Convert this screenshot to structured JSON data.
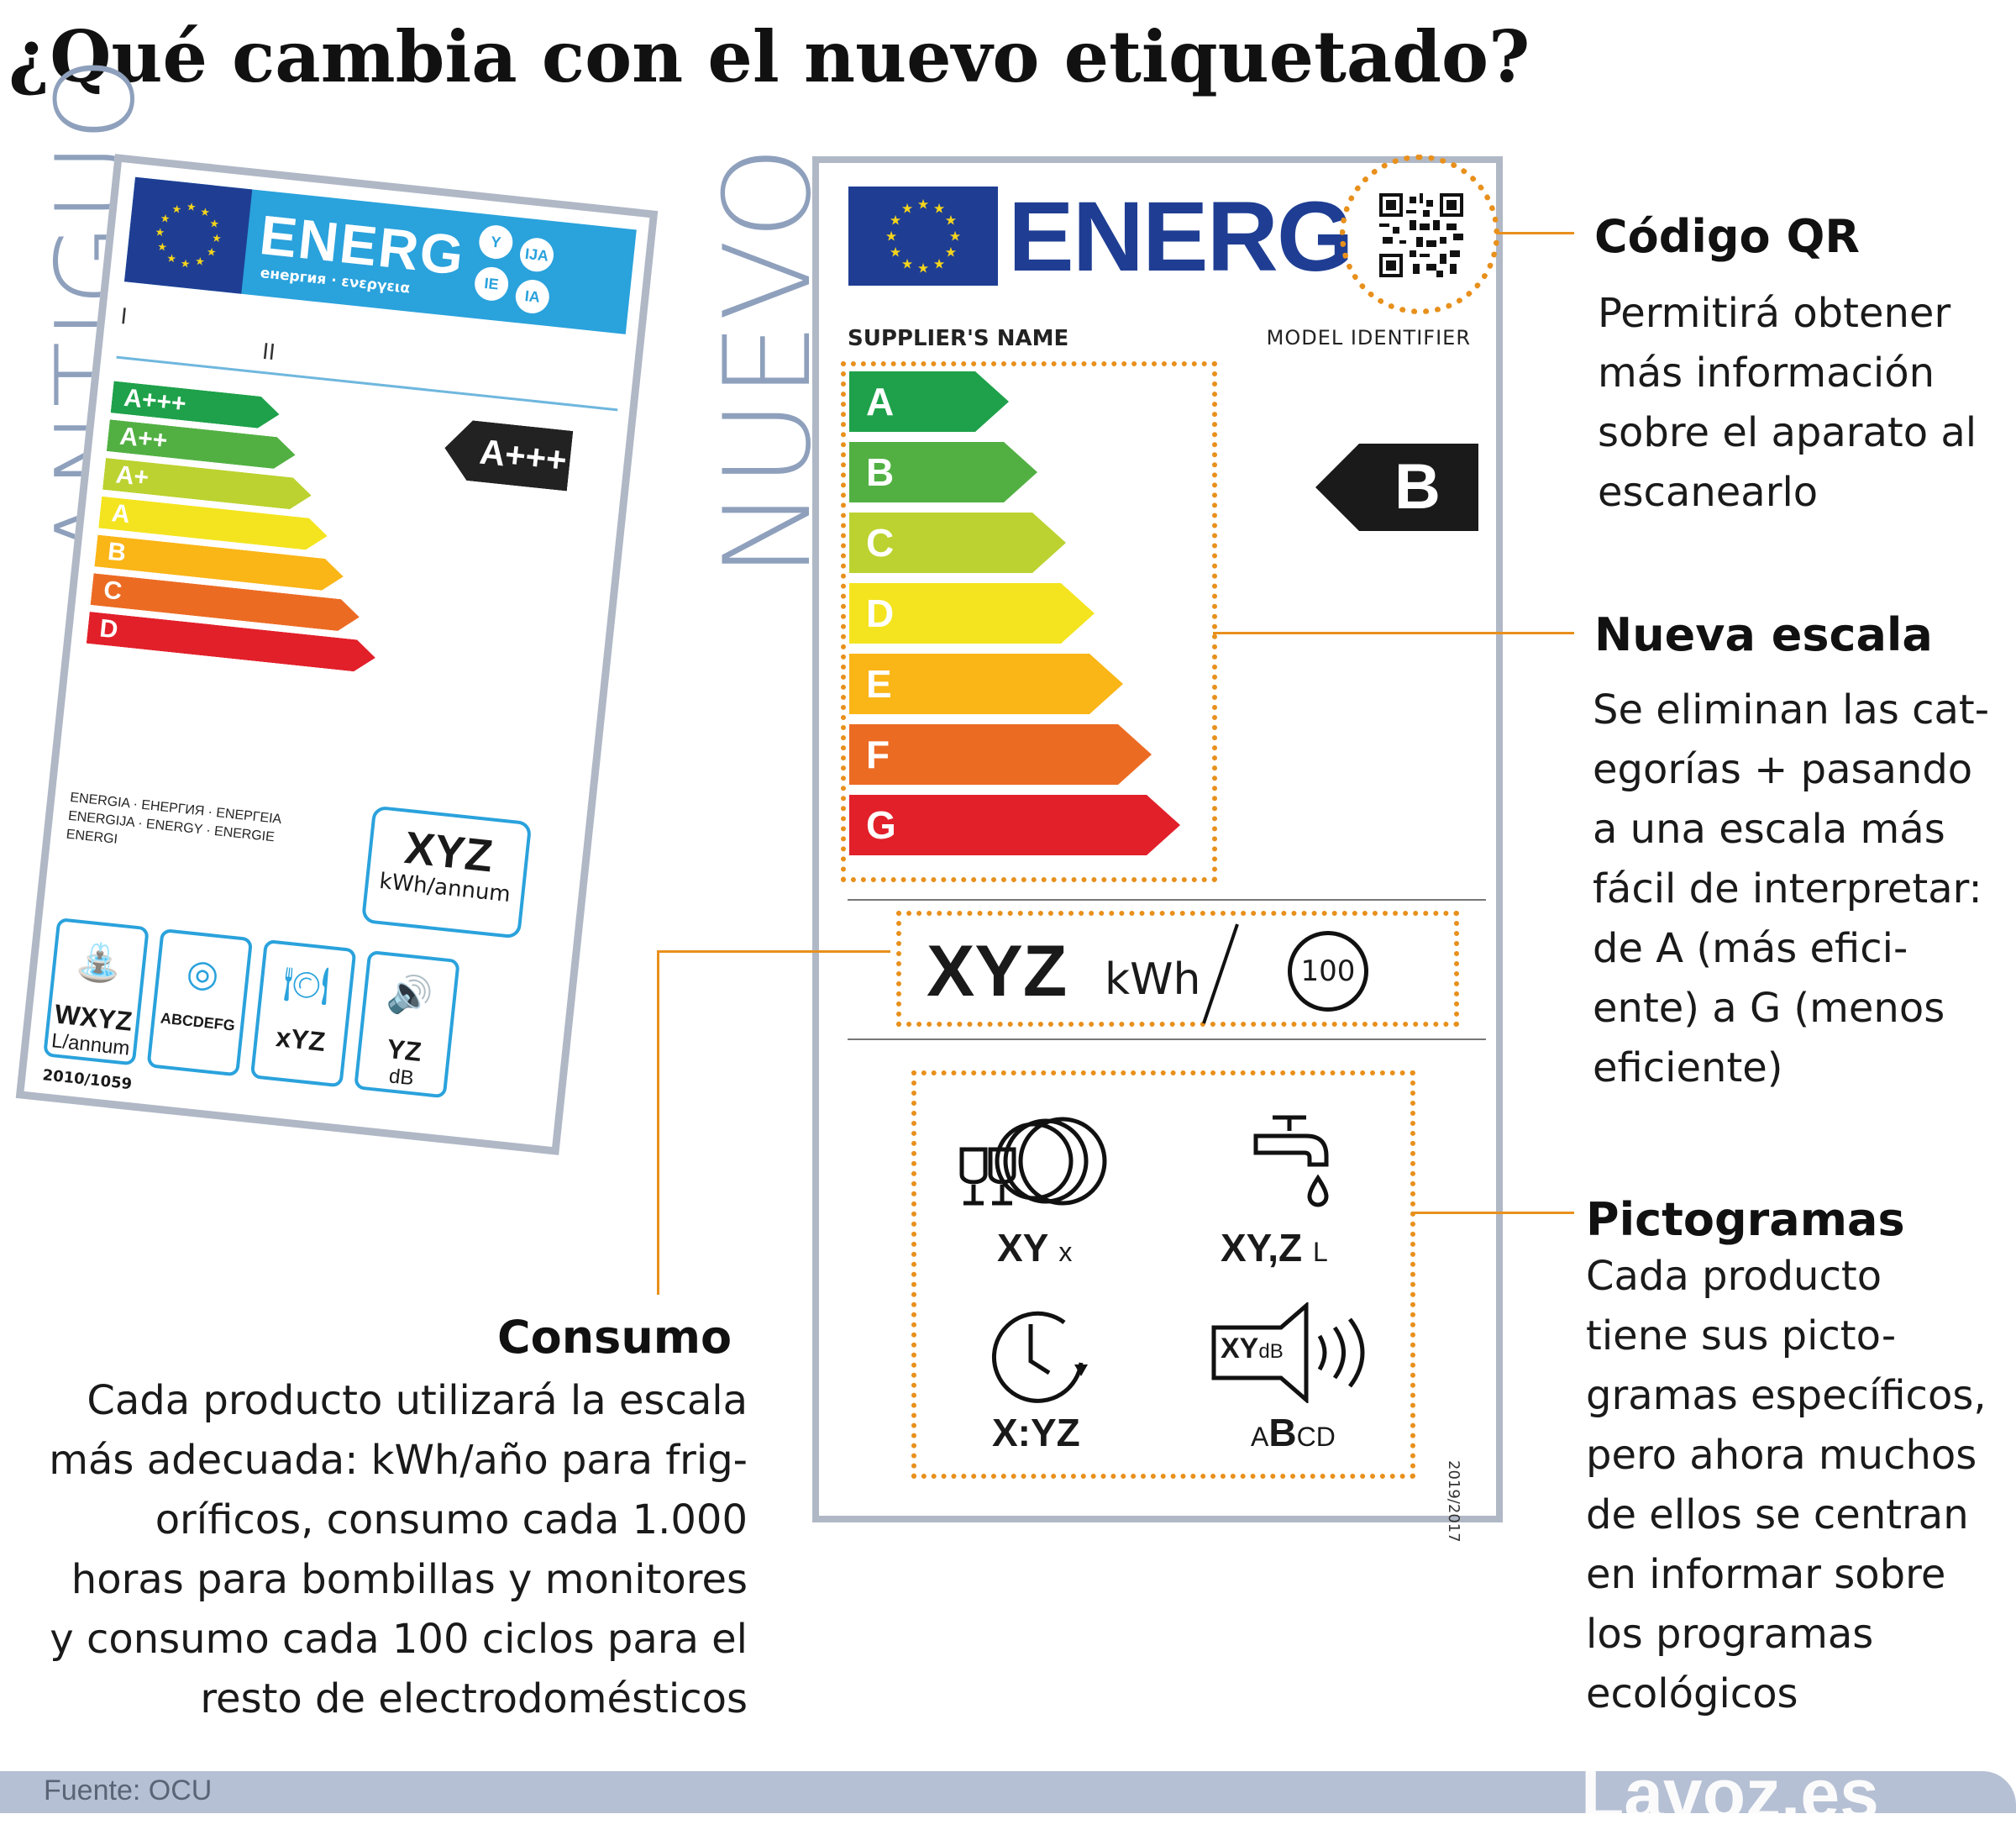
{
  "title": "¿Qué cambia con el nuevo etiquetado?",
  "side_labels": {
    "old": "ANTIGUO",
    "new": "NUEVO"
  },
  "old_label": {
    "energ": "ENERG",
    "energ_sub": "енергия · ενεργεια",
    "circles": [
      "Y",
      "IJA",
      "IE",
      "IA"
    ],
    "roman": [
      "I",
      "II"
    ],
    "classes": [
      {
        "label": "A+++",
        "color": "#1ea14a"
      },
      {
        "label": "A++",
        "color": "#52b043"
      },
      {
        "label": "A+",
        "color": "#bcd230"
      },
      {
        "label": "A",
        "color": "#f4e41f"
      },
      {
        "label": "B",
        "color": "#fab517"
      },
      {
        "label": "C",
        "color": "#ec6b23"
      },
      {
        "label": "D",
        "color": "#e2202a"
      }
    ],
    "arrow": "A+++",
    "languages": "ENERGIA · ЕНЕРГИЯ · ΕΝΕΡΓΕΙΑ ENERGIJA · ENERGY · ENERGIE ENERGI",
    "xyz": "XYZ",
    "kwh": "kWh/annum",
    "pictograms": [
      {
        "icon": "water-tap-icon",
        "glyph": "⛲",
        "value": "WXYZ",
        "unit": "L/annum"
      },
      {
        "icon": "drying-icon",
        "glyph": "◎",
        "value": "ABCDEFG",
        "unit": ""
      },
      {
        "icon": "dishes-icon",
        "glyph": "🍽",
        "value": "xYZ",
        "unit": ""
      },
      {
        "icon": "speaker-icon",
        "glyph": "🔊",
        "value": "YZ",
        "unit": "dB"
      }
    ],
    "regulation": "2010/1059"
  },
  "new_label": {
    "energ": "ENERG",
    "supplier": "SUPPLIER'S NAME",
    "model": "MODEL IDENTIFIER",
    "classes": [
      {
        "label": "A",
        "color": "#1ea14a"
      },
      {
        "label": "B",
        "color": "#52b043"
      },
      {
        "label": "C",
        "color": "#bcd230"
      },
      {
        "label": "D",
        "color": "#f4e41f"
      },
      {
        "label": "E",
        "color": "#fab517"
      },
      {
        "label": "F",
        "color": "#ec6b23"
      },
      {
        "label": "G",
        "color": "#e2202a"
      }
    ],
    "arrow": "B",
    "consumption": {
      "value": "XYZ",
      "unit": "kWh",
      "cycles": "100"
    },
    "pictograms": {
      "dishes": {
        "value": "XY",
        "unit": "x"
      },
      "water": {
        "value": "XY,Z",
        "unit": "L"
      },
      "duration": {
        "value": "X:YZ",
        "unit": ""
      },
      "noise": {
        "value": "XY",
        "unit": "dB",
        "classes": "ABCD",
        "highlight": "B"
      }
    },
    "regulation": "2019/2017"
  },
  "callouts": {
    "qr": {
      "heading": "Código QR",
      "lines": [
        "Permitirá obtener",
        "más información",
        "sobre el aparato al",
        "escanearlo"
      ]
    },
    "scale": {
      "heading": "Nueva escala",
      "lines": [
        "Se eliminan las cat-",
        "egorías + pasando",
        "a una escala más",
        "fácil de interpretar:",
        "de A (más efici-",
        "ente) a G (menos",
        "eficiente)"
      ]
    },
    "pictograms": {
      "heading": "Pictogramas",
      "lines": [
        "Cada producto",
        "tiene sus picto-",
        "gramas específicos,",
        "pero ahora muchos",
        "de ellos se centran",
        "en informar sobre",
        "los programas",
        "ecológicos"
      ]
    },
    "consumption": {
      "heading": "Consumo",
      "lines": [
        "Cada producto utilizará la escala",
        "más adecuada: kWh/año para frig-",
        "oríficos, consumo cada 1.000",
        "horas para bombillas y monitores",
        "y consumo cada 100 ciclos para el",
        "resto de electrodomésticos"
      ]
    }
  },
  "footer": {
    "source": "Fuente:  OCU",
    "brand": "Lavoz.es"
  },
  "colors": {
    "accent_orange": "#e8901c",
    "eu_blue": "#1f3e93",
    "old_blue": "#2aa2dc",
    "label_border": "#b0b8c6"
  }
}
